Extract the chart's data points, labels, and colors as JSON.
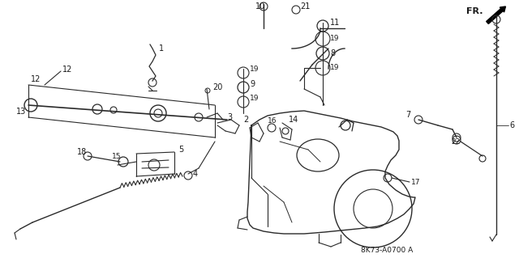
{
  "background_color": "#ffffff",
  "line_color": "#2a2a2a",
  "text_color": "#1a1a1a",
  "figsize": [
    6.4,
    3.19
  ],
  "dpi": 100,
  "watermark_text": "8K73-A0700 A"
}
